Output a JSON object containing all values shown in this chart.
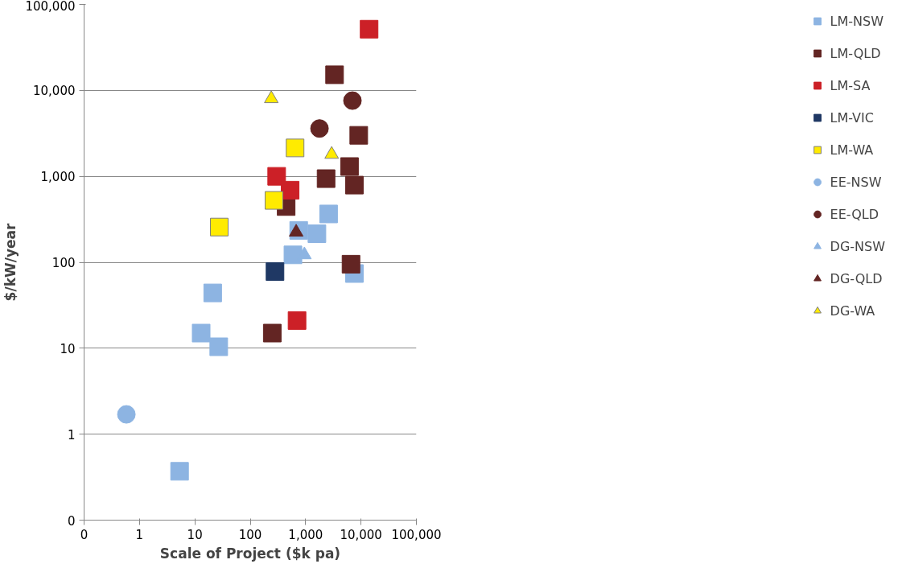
{
  "chart_data": {
    "type": "scatter",
    "xlabel": "Scale of Project ($k pa)",
    "ylabel": "$/kW/year",
    "log": "xy",
    "grid": "y",
    "legend": "right",
    "xlim": [
      0.1,
      100000
    ],
    "ylim": [
      0.1,
      100000
    ],
    "xticks": [
      {
        "value": 0.1,
        "label": "0"
      },
      1,
      10,
      100,
      {
        "value": 1000,
        "label": "1,000"
      },
      {
        "value": 10000,
        "label": "10,000"
      },
      {
        "value": 100000,
        "label": "100,000"
      }
    ],
    "yticks": [
      {
        "value": 0.1,
        "label": "0"
      },
      1,
      10,
      100,
      {
        "value": 1000,
        "label": "1,000"
      },
      {
        "value": 10000,
        "label": "10,000"
      },
      {
        "value": 100000,
        "label": "100,000"
      }
    ],
    "series": [
      {
        "name": "LM-NSW",
        "color": "#8db4e2",
        "marker": "square",
        "x": [
          13,
          21,
          27,
          5.3,
          590,
          750,
          1600,
          2600,
          7600
        ],
        "values": [
          15,
          44,
          10.4,
          0.37,
          122,
          235,
          215,
          365,
          74
        ]
      },
      {
        "name": "LM-QLD",
        "color": "#632523",
        "marker": "square",
        "x": [
          250,
          445,
          2340,
          3330,
          6200,
          7600,
          9100,
          6600
        ],
        "values": [
          15,
          445,
          940,
          15200,
          1300,
          790,
          3000,
          95
        ]
      },
      {
        "name": "LM-SA",
        "color": "#cc2027",
        "marker": "square",
        "x": [
          14000,
          300,
          525,
          700
        ],
        "values": [
          51500,
          1000,
          690,
          21
        ]
      },
      {
        "name": "LM-VIC",
        "color": "#1f3864",
        "marker": "square",
        "x": [
          280
        ],
        "values": [
          78
        ]
      },
      {
        "name": "LM-WA",
        "color": "#ffeb00",
        "marker": "square",
        "x": [
          27.6,
          268,
          645
        ],
        "values": [
          257,
          525,
          2140
        ]
      },
      {
        "name": "EE-NSW",
        "color": "#8db4e2",
        "marker": "circle",
        "x": [
          0.58
        ],
        "values": [
          1.7
        ]
      },
      {
        "name": "EE-QLD",
        "color": "#632523",
        "marker": "circle",
        "x": [
          1780,
          7000
        ],
        "values": [
          3600,
          7600
        ]
      },
      {
        "name": "DG-NSW",
        "color": "#8db4e2",
        "marker": "triangle",
        "x": [
          950
        ],
        "values": [
          122
        ]
      },
      {
        "name": "DG-QLD",
        "color": "#632523",
        "marker": "triangle",
        "x": [
          675
        ],
        "values": [
          224
        ]
      },
      {
        "name": "DG-WA",
        "color": "#ffeb00",
        "marker": "triangle",
        "x": [
          240,
          2950
        ],
        "values": [
          8000,
          1800
        ]
      }
    ]
  }
}
